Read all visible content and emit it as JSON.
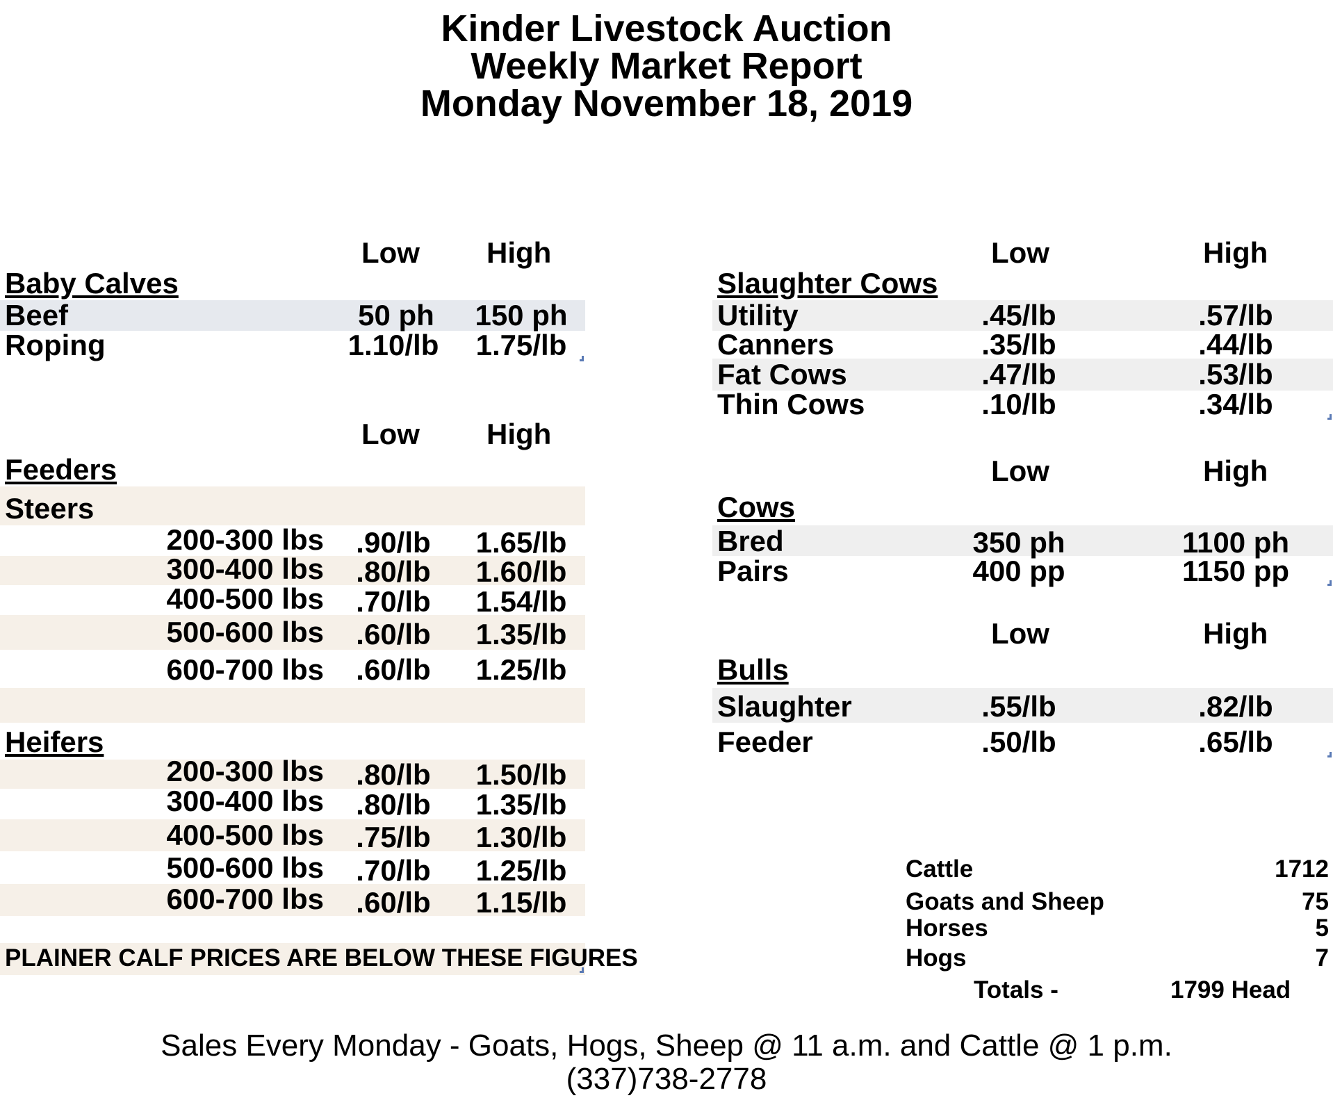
{
  "title": {
    "line1": "Kinder Livestock Auction",
    "line2": "Weekly Market Report",
    "line3": "Monday November 18, 2019"
  },
  "col_low": "Low",
  "col_high": "High",
  "baby_calves": {
    "title": "Baby Calves",
    "rows": [
      {
        "label": "Beef",
        "low": "50 ph",
        "high": "150 ph"
      },
      {
        "label": "Roping",
        "low": "1.10/lb",
        "high": "1.75/lb"
      }
    ]
  },
  "feeders": {
    "title": "Feeders",
    "steers_label": "Steers",
    "steers": [
      {
        "range": "200-300 lbs",
        "low": ".90/lb",
        "high": "1.65/lb"
      },
      {
        "range": "300-400 lbs",
        "low": ".80/lb",
        "high": "1.60/lb"
      },
      {
        "range": "400-500 lbs",
        "low": ".70/lb",
        "high": "1.54/lb"
      },
      {
        "range": "500-600 lbs",
        "low": ".60/lb",
        "high": "1.35/lb"
      },
      {
        "range": "600-700 lbs",
        "low": ".60/lb",
        "high": "1.25/lb"
      }
    ],
    "heifers_title": "Heifers",
    "heifers": [
      {
        "range": "200-300 lbs",
        "low": ".80/lb",
        "high": "1.50/lb"
      },
      {
        "range": "300-400 lbs",
        "low": ".80/lb",
        "high": "1.35/lb"
      },
      {
        "range": "400-500 lbs",
        "low": ".75/lb",
        "high": "1.30/lb"
      },
      {
        "range": "500-600 lbs",
        "low": ".70/lb",
        "high": "1.25/lb"
      },
      {
        "range": "600-700 lbs",
        "low": ".60/lb",
        "high": "1.15/lb"
      }
    ],
    "note": "PLAINER CALF PRICES ARE BELOW THESE FIGURES"
  },
  "slaughter_cows": {
    "title": "Slaughter Cows",
    "rows": [
      {
        "label": "Utility",
        "low": ".45/lb",
        "high": ".57/lb"
      },
      {
        "label": "Canners",
        "low": ".35/lb",
        "high": ".44/lb"
      },
      {
        "label": "Fat Cows",
        "low": ".47/lb",
        "high": ".53/lb"
      },
      {
        "label": "Thin Cows",
        "low": ".10/lb",
        "high": ".34/lb"
      }
    ]
  },
  "cows": {
    "title": "Cows",
    "rows": [
      {
        "label": "Bred",
        "low": "350 ph",
        "high": "1100 ph"
      },
      {
        "label": "Pairs",
        "low": "400 pp",
        "high": "1150 pp"
      }
    ]
  },
  "bulls": {
    "title": "Bulls",
    "rows": [
      {
        "label": "Slaughter",
        "low": ".55/lb",
        "high": ".82/lb"
      },
      {
        "label": "Feeder",
        "low": ".50/lb",
        "high": ".65/lb"
      }
    ]
  },
  "receipts": {
    "rows": [
      {
        "label": "Cattle",
        "value": "1712"
      },
      {
        "label": "Goats and Sheep",
        "value": "75"
      },
      {
        "label": "Horses",
        "value": "5"
      },
      {
        "label": "Hogs",
        "value": "7"
      }
    ],
    "totals_label": "Totals -",
    "totals_value": "1799 Head"
  },
  "footer": {
    "line1": "Sales Every Monday - Goats, Hogs, Sheep @ 11 a.m. and Cattle @ 1 p.m.",
    "line2": "(337)738-2778"
  }
}
